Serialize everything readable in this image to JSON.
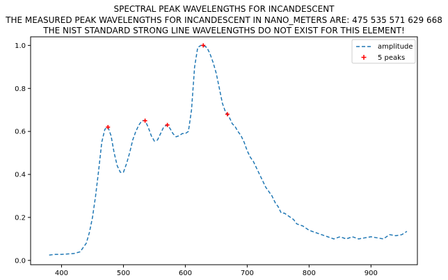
{
  "chart_data": {
    "type": "line",
    "title_lines": [
      "SPECTRAL PEAK WAVELENGTHS FOR INCANDESCENT",
      "THE MEASURED PEAK WAVELENGTHS FOR INCANDESCENT IN NANO_METERS ARE: 475 535 571 629 668",
      "THE NIST STANDARD STRONG LINE WAVELENGTHS DO NOT EXIST FOR THIS ELEMENT!"
    ],
    "xlabel": "",
    "ylabel": "",
    "xlim": [
      350,
      975
    ],
    "ylim": [
      -0.02,
      1.04
    ],
    "xticks": [
      400,
      500,
      600,
      700,
      800,
      900
    ],
    "yticks": [
      0.0,
      0.2,
      0.4,
      0.6,
      0.8,
      1.0
    ],
    "xtick_labels": [
      "400",
      "500",
      "600",
      "700",
      "800",
      "900"
    ],
    "ytick_labels": [
      "0.0",
      "0.2",
      "0.4",
      "0.6",
      "0.8",
      "1.0"
    ],
    "grid": false,
    "legend_position": "top-right",
    "series": [
      {
        "name": "amplitude",
        "style": "dashed",
        "color": "#1f77b4",
        "x": [
          380,
          390,
          400,
          410,
          420,
          430,
          440,
          445,
          450,
          455,
          460,
          465,
          470,
          475,
          480,
          485,
          490,
          495,
          500,
          505,
          510,
          515,
          520,
          525,
          530,
          535,
          540,
          545,
          550,
          555,
          560,
          565,
          570,
          575,
          580,
          585,
          590,
          595,
          600,
          605,
          610,
          615,
          620,
          625,
          629,
          635,
          640,
          645,
          650,
          655,
          660,
          665,
          668,
          672,
          676,
          680,
          685,
          690,
          695,
          700,
          705,
          710,
          715,
          720,
          725,
          730,
          735,
          740,
          745,
          750,
          755,
          760,
          765,
          770,
          775,
          780,
          790,
          800,
          810,
          820,
          830,
          840,
          850,
          860,
          870,
          880,
          890,
          900,
          910,
          920,
          930,
          940,
          950,
          958
        ],
        "y": [
          0.025,
          0.028,
          0.028,
          0.03,
          0.032,
          0.04,
          0.08,
          0.13,
          0.2,
          0.3,
          0.42,
          0.55,
          0.61,
          0.62,
          0.58,
          0.5,
          0.44,
          0.41,
          0.41,
          0.45,
          0.5,
          0.56,
          0.6,
          0.63,
          0.65,
          0.65,
          0.62,
          0.58,
          0.555,
          0.56,
          0.59,
          0.62,
          0.63,
          0.615,
          0.59,
          0.575,
          0.58,
          0.59,
          0.59,
          0.6,
          0.7,
          0.9,
          0.99,
          1.0,
          1.0,
          0.99,
          0.96,
          0.92,
          0.87,
          0.8,
          0.73,
          0.69,
          0.68,
          0.66,
          0.635,
          0.625,
          0.6,
          0.58,
          0.55,
          0.51,
          0.48,
          0.46,
          0.43,
          0.4,
          0.37,
          0.34,
          0.32,
          0.3,
          0.27,
          0.25,
          0.22,
          0.22,
          0.21,
          0.2,
          0.19,
          0.17,
          0.16,
          0.14,
          0.13,
          0.12,
          0.11,
          0.1,
          0.11,
          0.1,
          0.11,
          0.1,
          0.105,
          0.11,
          0.105,
          0.1,
          0.12,
          0.115,
          0.12,
          0.135
        ]
      },
      {
        "name": "5 peaks",
        "style": "markers",
        "marker": "plus",
        "color": "#ff0000",
        "x": [
          475,
          535,
          571,
          629,
          668
        ],
        "y": [
          0.62,
          0.65,
          0.63,
          1.0,
          0.68
        ]
      }
    ]
  }
}
